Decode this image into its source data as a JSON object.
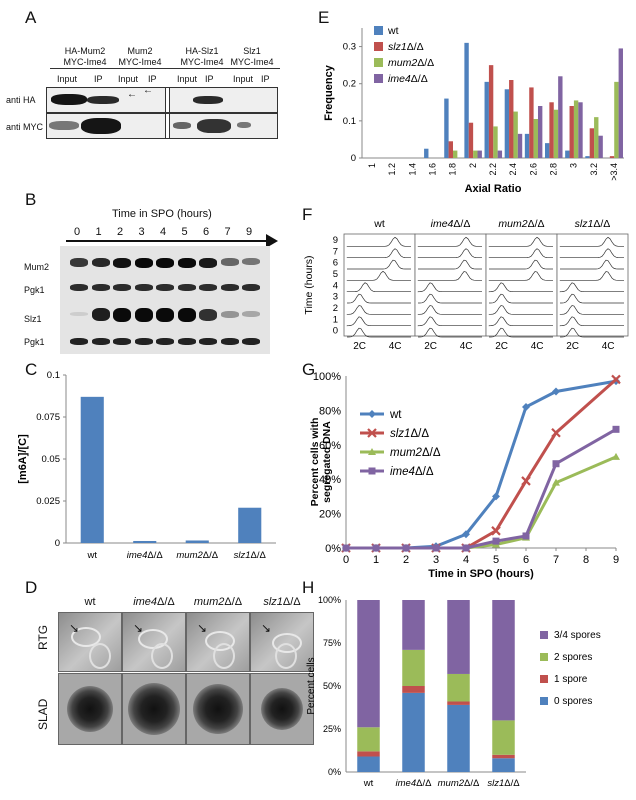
{
  "panels": {
    "A": "A",
    "B": "B",
    "C": "C",
    "D": "D",
    "E": "E",
    "F": "F",
    "G": "G",
    "H": "H"
  },
  "panelA": {
    "groups": [
      {
        "line1": "HA-Mum2",
        "line2": "MYC-Ime4",
        "cols": [
          "Input",
          "IP"
        ]
      },
      {
        "line1": "Mum2",
        "line2": "MYC-Ime4",
        "cols": [
          "Input",
          "IP"
        ]
      },
      {
        "line1": "HA-Slz1",
        "line2": "MYC-Ime4",
        "cols": [
          "Input",
          "IP"
        ]
      },
      {
        "line1": "Slz1",
        "line2": "MYC-Ime4",
        "cols": [
          "Input",
          "IP"
        ]
      }
    ],
    "rows": [
      "anti HA",
      "anti MYC"
    ]
  },
  "panelB": {
    "title": "Time in SPO (hours)",
    "timepoints": [
      "0",
      "1",
      "2",
      "3",
      "4",
      "5",
      "6",
      "7",
      "9"
    ],
    "rows": [
      "Mum2",
      "Pgk1",
      "Slz1",
      "Pgk1"
    ]
  },
  "panelD": {
    "strains": [
      "wt",
      "ime4Δ/Δ",
      "mum2Δ/Δ",
      "slz1Δ/Δ"
    ],
    "rows": [
      "RTG",
      "SLAD"
    ]
  },
  "panelF": {
    "strains": [
      "wt",
      "ime4Δ/Δ",
      "mum2Δ/Δ",
      "slz1Δ/Δ"
    ],
    "ylabel": "Time (hours)",
    "yticks": [
      "9",
      "7",
      "6",
      "5",
      "4",
      "3",
      "2",
      "1",
      "0"
    ],
    "xticks": [
      "2C",
      "4C"
    ]
  },
  "chart_data": [
    {
      "type": "bar",
      "panel": "C",
      "ylabel": "[m6A]/[C]",
      "categories": [
        "wt",
        "ime4Δ/Δ",
        "mum2Δ/Δ",
        "slz1Δ/Δ"
      ],
      "values": [
        0.087,
        0.0012,
        0.0015,
        0.021
      ],
      "ylim": [
        0,
        0.1
      ],
      "yticks": [
        "0",
        "0.025",
        "0.05",
        "0.075",
        "0.1"
      ],
      "color": "#4f81bd"
    },
    {
      "type": "bar",
      "panel": "E",
      "ylabel": "Frequency",
      "xlabel": "Axial Ratio",
      "categories": [
        "1",
        "1.2",
        "1.4",
        "1.6",
        "1.8",
        "2",
        "2.2",
        "2.4",
        "2.6",
        "2.8",
        "3",
        "3.2",
        ">3.4"
      ],
      "ylim": [
        0,
        0.35
      ],
      "yticks": [
        "0",
        "0.1",
        "0.2",
        "0.3"
      ],
      "series": [
        {
          "name": "wt",
          "color": "#4f81bd",
          "values": [
            0,
            0,
            0,
            0.025,
            0.16,
            0.31,
            0.205,
            0.185,
            0.065,
            0.04,
            0.02,
            0.005,
            0
          ]
        },
        {
          "name": "slz1Δ/Δ",
          "color": "#c0504d",
          "values": [
            0,
            0,
            0,
            0,
            0.045,
            0.095,
            0.25,
            0.21,
            0.19,
            0.15,
            0.14,
            0.08,
            0.005
          ]
        },
        {
          "name": "mum2Δ/Δ",
          "color": "#9bbb59",
          "values": [
            0,
            0,
            0,
            0,
            0.02,
            0.02,
            0.085,
            0.125,
            0.105,
            0.13,
            0.155,
            0.11,
            0.205
          ]
        },
        {
          "name": "ime4Δ/Δ",
          "color": "#8064a2",
          "values": [
            0,
            0,
            0,
            0,
            0,
            0.02,
            0.02,
            0.065,
            0.14,
            0.22,
            0.15,
            0.06,
            0.295
          ]
        }
      ]
    },
    {
      "type": "line",
      "panel": "G",
      "ylabel": "Percent cells with segregated DNA",
      "xlabel": "Time in SPO (hours)",
      "x": [
        0,
        1,
        2,
        3,
        4,
        5,
        6,
        7,
        9
      ],
      "xticks": [
        "0",
        "1",
        "2",
        "3",
        "4",
        "5",
        "6",
        "7",
        "8",
        "9"
      ],
      "yticks": [
        "0%",
        "20%",
        "40%",
        "60%",
        "80%",
        "100%"
      ],
      "ylim": [
        0,
        100
      ],
      "series": [
        {
          "name": "wt",
          "color": "#4f81bd",
          "marker": "diamond",
          "values": [
            0,
            0,
            0,
            1,
            8,
            30,
            82,
            91,
            97
          ]
        },
        {
          "name": "slz1Δ/Δ",
          "color": "#c0504d",
          "marker": "x",
          "values": [
            0,
            0,
            0,
            0,
            0,
            10,
            39,
            67,
            98
          ]
        },
        {
          "name": "mum2Δ/Δ",
          "color": "#9bbb59",
          "marker": "triangle",
          "values": [
            0,
            0,
            0,
            0,
            0,
            2,
            6,
            38,
            53
          ]
        },
        {
          "name": "ime4Δ/Δ",
          "color": "#8064a2",
          "marker": "square",
          "values": [
            0,
            0,
            0,
            0,
            0,
            4,
            7,
            49,
            69
          ]
        }
      ]
    },
    {
      "type": "bar",
      "panel": "H",
      "ylabel": "Percent cells",
      "stacked": true,
      "categories": [
        "wt",
        "ime4Δ/Δ",
        "mum2Δ/Δ",
        "slz1Δ/Δ"
      ],
      "yticks": [
        "0%",
        "25%",
        "50%",
        "75%",
        "100%"
      ],
      "ylim": [
        0,
        100
      ],
      "series": [
        {
          "name": "0 spores",
          "color": "#4f81bd",
          "values": [
            9,
            46,
            39,
            8
          ]
        },
        {
          "name": "1 spore",
          "color": "#c0504d",
          "values": [
            3,
            4,
            2,
            2
          ]
        },
        {
          "name": "2 spores",
          "color": "#9bbb59",
          "values": [
            14,
            21,
            16,
            20
          ]
        },
        {
          "name": "3/4 spores",
          "color": "#8064a2",
          "values": [
            74,
            29,
            43,
            70
          ]
        }
      ]
    }
  ]
}
